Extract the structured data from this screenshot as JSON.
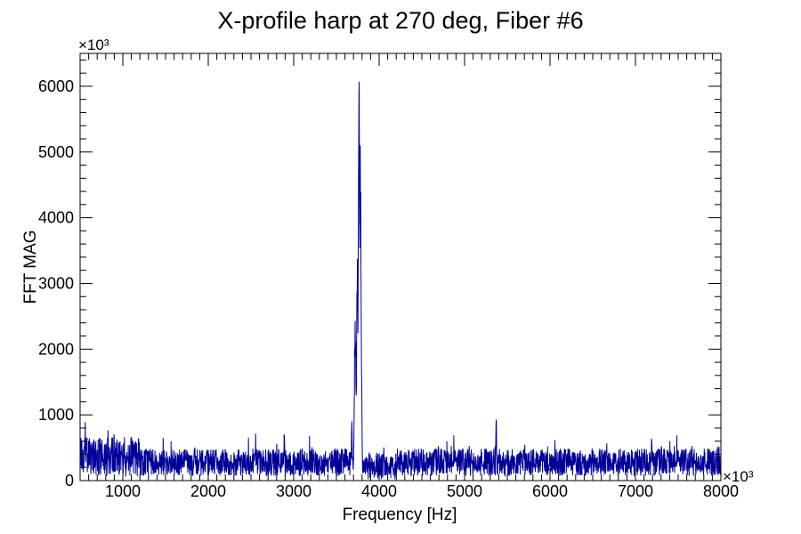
{
  "chart_data": {
    "type": "line",
    "title": "X-profile harp at 270 deg, Fiber #6",
    "xlabel": "Frequency [Hz]",
    "ylabel": "FFT MAG",
    "x_multiplier": "×10³",
    "y_multiplier": "×10³",
    "xlim": [
      500,
      8000
    ],
    "ylim": [
      0,
      6500
    ],
    "xticks": [
      "1000",
      "2000",
      "3000",
      "4000",
      "5000",
      "6000",
      "7000",
      "8000"
    ],
    "yticks": [
      "0",
      "1000",
      "2000",
      "3000",
      "4000",
      "5000",
      "6000"
    ],
    "grid": false,
    "line_color": "#000099",
    "noise_baseline": 280,
    "noise_amplitude": 260,
    "peaks": [
      {
        "x": 3720,
        "y": 2600
      },
      {
        "x": 3745,
        "y": 3400
      },
      {
        "x": 3765,
        "y": 6220
      },
      {
        "x": 3780,
        "y": 5200
      },
      {
        "x": 3795,
        "y": 1900
      },
      {
        "x": 3680,
        "y": 950
      },
      {
        "x": 5370,
        "y": 1090
      },
      {
        "x": 2890,
        "y": 880
      },
      {
        "x": 560,
        "y": 940
      },
      {
        "x": 7190,
        "y": 760
      }
    ]
  }
}
